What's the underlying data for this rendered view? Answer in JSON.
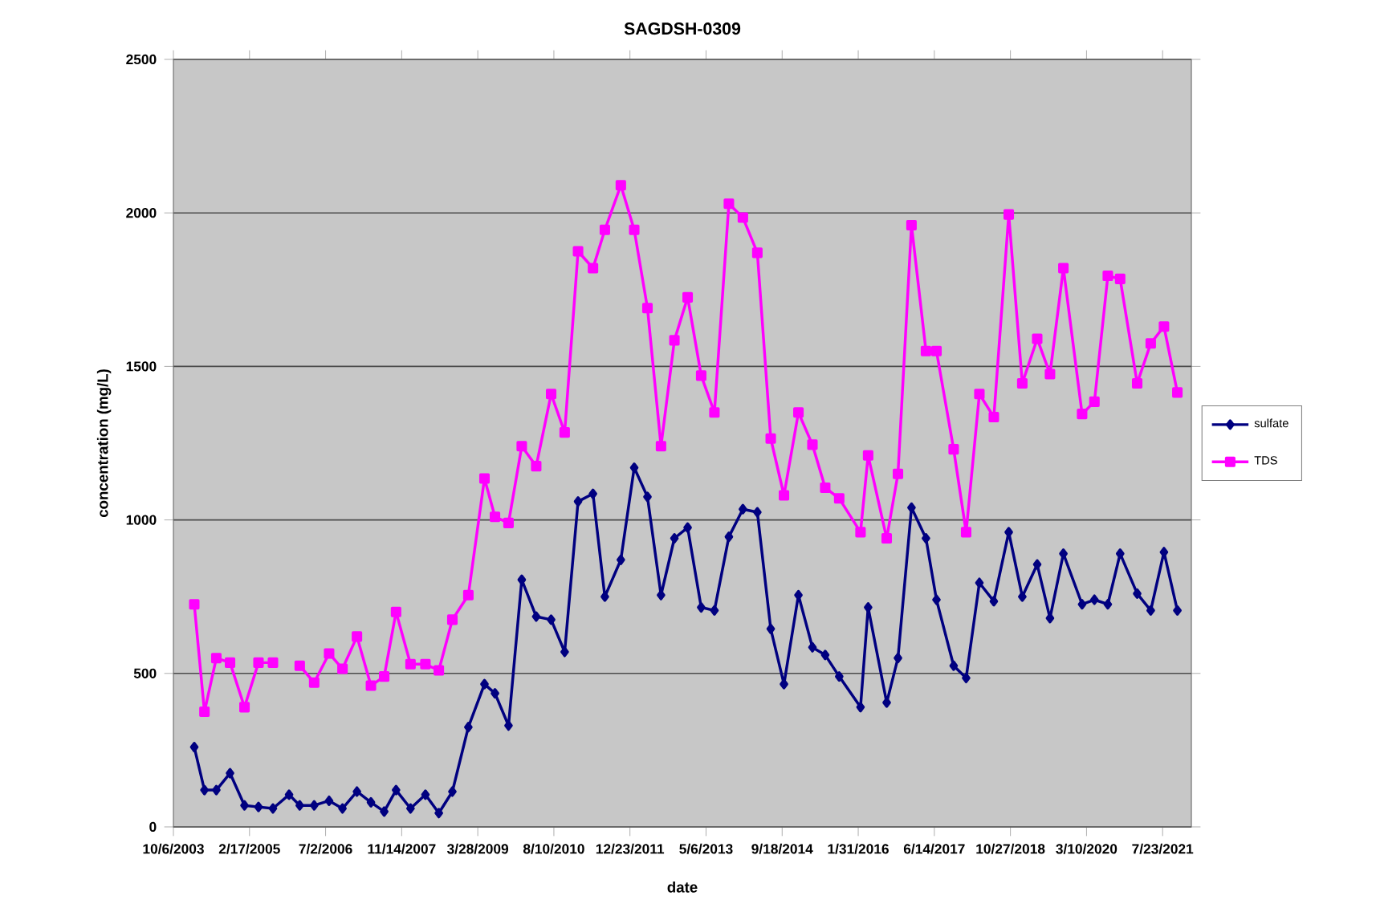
{
  "chart_data": {
    "type": "line",
    "title": "SAGDSH-0309",
    "xlabel": "date",
    "ylabel": "concentration (mg/L)",
    "x": [
      "2004-02-20",
      "2004-04-27",
      "2004-07-14",
      "2004-10-12",
      "2005-01-15",
      "2005-04-17",
      "2005-07-21",
      "2005-11-04",
      "2006-01-13",
      "2006-04-18",
      "2006-07-25",
      "2006-10-21",
      "2007-01-24",
      "2007-04-26",
      "2007-07-22",
      "2007-10-08",
      "2008-01-11",
      "2008-04-18",
      "2008-07-15",
      "2008-10-12",
      "2009-01-25",
      "2009-05-11",
      "2009-07-19",
      "2009-10-16",
      "2010-01-11",
      "2010-04-16",
      "2010-07-23",
      "2010-10-20",
      "2011-01-16",
      "2011-04-24",
      "2011-07-11",
      "2011-10-24",
      "2012-01-20",
      "2012-04-16",
      "2012-07-14",
      "2012-10-10",
      "2013-01-05",
      "2013-04-04",
      "2013-06-30",
      "2013-10-03",
      "2014-01-03",
      "2014-04-08",
      "2014-07-05",
      "2014-09-30",
      "2015-01-03",
      "2015-04-05",
      "2015-06-28",
      "2015-09-28",
      "2016-02-15",
      "2016-04-05",
      "2016-08-05",
      "2016-10-18",
      "2017-01-15",
      "2017-04-20",
      "2017-06-28",
      "2017-10-19",
      "2018-01-09",
      "2018-04-06",
      "2018-07-10",
      "2018-10-16",
      "2019-01-13",
      "2019-04-21",
      "2019-07-14",
      "2019-10-10",
      "2020-02-10",
      "2020-05-01",
      "2020-07-28",
      "2020-10-17",
      "2021-02-06",
      "2021-05-06",
      "2021-08-01",
      "2021-10-28"
    ],
    "series": [
      {
        "name": "sulfate",
        "color": "#000080",
        "marker": "diamond",
        "values": [
          260,
          120,
          120,
          175,
          70,
          65,
          60,
          105,
          70,
          70,
          85,
          60,
          115,
          80,
          50,
          120,
          60,
          105,
          45,
          115,
          325,
          465,
          435,
          330,
          805,
          685,
          675,
          570,
          1060,
          1085,
          750,
          870,
          1170,
          1075,
          755,
          940,
          975,
          715,
          705,
          945,
          1035,
          1025,
          645,
          465,
          755,
          585,
          560,
          490,
          390,
          715,
          405,
          550,
          1040,
          940,
          740,
          525,
          485,
          795,
          735,
          960,
          750,
          855,
          680,
          890,
          725,
          740,
          725,
          890,
          760,
          705,
          895,
          705
        ]
      },
      {
        "name": "TDS",
        "color": "#ff00ff",
        "marker": "square",
        "values": [
          725,
          375,
          550,
          535,
          390,
          535,
          535,
          null,
          525,
          470,
          565,
          515,
          620,
          460,
          490,
          700,
          530,
          530,
          510,
          675,
          755,
          1135,
          1010,
          990,
          1240,
          1175,
          1410,
          1285,
          1875,
          1820,
          1945,
          2090,
          1945,
          1690,
          1240,
          1585,
          1725,
          1470,
          1350,
          2030,
          1985,
          1870,
          1265,
          1080,
          1350,
          1245,
          1105,
          1070,
          960,
          1210,
          940,
          1150,
          1960,
          1550,
          1550,
          1230,
          960,
          1410,
          1335,
          1995,
          1445,
          1590,
          1475,
          1820,
          1345,
          1385,
          1795,
          1785,
          1445,
          1575,
          1630,
          1415
        ]
      }
    ],
    "xlim": [
      "2003-10-06",
      "2022-01-28"
    ],
    "xticks": [
      {
        "value": "2003-10-06",
        "label": "10/6/2003"
      },
      {
        "value": "2005-02-17",
        "label": "2/17/2005"
      },
      {
        "value": "2006-07-02",
        "label": "7/2/2006"
      },
      {
        "value": "2007-11-14",
        "label": "11/14/2007"
      },
      {
        "value": "2009-03-28",
        "label": "3/28/2009"
      },
      {
        "value": "2010-08-10",
        "label": "8/10/2010"
      },
      {
        "value": "2011-12-23",
        "label": "12/23/2011"
      },
      {
        "value": "2013-05-06",
        "label": "5/6/2013"
      },
      {
        "value": "2014-09-18",
        "label": "9/18/2014"
      },
      {
        "value": "2016-01-31",
        "label": "1/31/2016"
      },
      {
        "value": "2017-06-14",
        "label": "6/14/2017"
      },
      {
        "value": "2018-10-27",
        "label": "10/27/2018"
      },
      {
        "value": "2020-03-10",
        "label": "3/10/2020"
      },
      {
        "value": "2021-07-23",
        "label": "7/23/2021"
      }
    ],
    "ylim": [
      0,
      2500
    ],
    "yticks": [
      0,
      500,
      1000,
      1500,
      2000,
      2500
    ],
    "grid": "y",
    "legend": "right",
    "line_style": "solid"
  }
}
